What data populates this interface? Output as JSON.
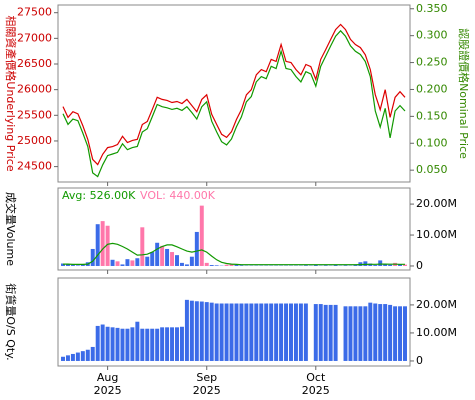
{
  "chart_data": [
    {
      "type": "line",
      "ylabel": "相關資產價格Underlying Price",
      "y2label": "認股證價格Nominal Price",
      "ylim": [
        24200,
        27650
      ],
      "yticks": [
        24500,
        25000,
        25500,
        26000,
        26500,
        27000,
        27500
      ],
      "y2lim": [
        0.028,
        0.357
      ],
      "y2ticks": [
        {
          "value": 0.05,
          "label": "0.050"
        },
        {
          "value": 0.1,
          "label": "0.100"
        },
        {
          "value": 0.15,
          "label": "0.150"
        },
        {
          "value": 0.2,
          "label": "0.200"
        },
        {
          "value": 0.25,
          "label": "0.250"
        },
        {
          "value": 0.3,
          "label": "0.300"
        },
        {
          "value": 0.35,
          "label": "0.350"
        }
      ],
      "ycolor": "#cc0000",
      "y2color": "#338800",
      "series": [
        {
          "color": "#dd0000",
          "values": [
            25670,
            25460,
            25570,
            25530,
            25300,
            25030,
            24640,
            24540,
            24740,
            24870,
            24890,
            24930,
            25090,
            24970,
            25010,
            25030,
            25320,
            25380,
            25610,
            25850,
            25810,
            25790,
            25750,
            25770,
            25730,
            25810,
            25690,
            25570,
            25810,
            25900,
            25520,
            25320,
            25130,
            25070,
            25180,
            25420,
            25610,
            25900,
            26000,
            26290,
            26390,
            26350,
            26590,
            26550,
            26880,
            26550,
            26530,
            26390,
            26290,
            26490,
            26450,
            26200,
            26590,
            26780,
            26980,
            27170,
            27270,
            27170,
            26980,
            26880,
            26820,
            26680,
            26390,
            25900,
            25610,
            26000,
            25460,
            25850,
            25960,
            25850
          ]
        },
        {
          "color": "#119900",
          "axis": "y2",
          "values": [
            0.155,
            0.135,
            0.145,
            0.142,
            0.119,
            0.094,
            0.045,
            0.038,
            0.06,
            0.077,
            0.08,
            0.083,
            0.099,
            0.088,
            0.092,
            0.094,
            0.121,
            0.127,
            0.149,
            0.172,
            0.168,
            0.166,
            0.163,
            0.165,
            0.161,
            0.168,
            0.157,
            0.145,
            0.168,
            0.177,
            0.141,
            0.121,
            0.103,
            0.097,
            0.108,
            0.131,
            0.149,
            0.177,
            0.187,
            0.214,
            0.224,
            0.22,
            0.243,
            0.239,
            0.271,
            0.239,
            0.237,
            0.224,
            0.214,
            0.233,
            0.229,
            0.206,
            0.243,
            0.262,
            0.281,
            0.299,
            0.309,
            0.299,
            0.281,
            0.271,
            0.265,
            0.252,
            0.224,
            0.16,
            0.13,
            0.165,
            0.11,
            0.16,
            0.17,
            0.16
          ]
        }
      ]
    },
    {
      "type": "bar",
      "ylabel": "成交量Volume",
      "ylim": [
        -1300000,
        25200000
      ],
      "yticks": [
        0,
        {
          "value": 10000000,
          "label": "10.00M"
        },
        {
          "value": 20000000,
          "label": "20.00M"
        }
      ],
      "avg_label": "Avg: 526.00K",
      "vol_label": "VOL: 440.00K",
      "series": [
        {
          "color": "#3b6be8",
          "values": [
            800000,
            500000,
            300000,
            200000,
            600000,
            1200000,
            5500000,
            13500000,
            null,
            null,
            2000000,
            null,
            500000,
            2200000,
            null,
            2500000,
            null,
            3000000,
            4500000,
            7500000,
            null,
            5500000,
            null,
            3500000,
            1000000,
            500000,
            3000000,
            11000000,
            null,
            null,
            300000,
            200000,
            100000,
            null,
            null,
            300000,
            200000,
            100000,
            100000,
            100000,
            100000,
            100000,
            100000,
            100000,
            100000,
            100000,
            100000,
            100000,
            100000,
            200000,
            100000,
            300000,
            100000,
            200000,
            100000,
            300000,
            100000,
            200000,
            100000,
            300000,
            1200000,
            1500000,
            800000,
            300000,
            1800000,
            600000,
            400000,
            null,
            500000,
            null
          ]
        },
        {
          "color": "#ff77aa",
          "values": [
            null,
            null,
            null,
            null,
            null,
            null,
            null,
            null,
            14500000,
            13000000,
            null,
            1500000,
            null,
            null,
            1800000,
            null,
            12500000,
            null,
            null,
            null,
            6500000,
            null,
            4500000,
            null,
            null,
            null,
            null,
            null,
            19500000,
            1000000,
            null,
            null,
            null,
            400000,
            500000,
            null,
            null,
            null,
            null,
            null,
            null,
            null,
            null,
            null,
            null,
            null,
            null,
            null,
            null,
            null,
            null,
            null,
            null,
            null,
            null,
            null,
            null,
            null,
            null,
            null,
            null,
            null,
            null,
            null,
            null,
            null,
            null,
            1000000,
            null,
            440000
          ]
        },
        {
          "type": "line",
          "color": "#119900",
          "values": [
            600000,
            600000,
            500000,
            500000,
            500000,
            600000,
            1500000,
            3500000,
            5500000,
            7000000,
            7300000,
            7000000,
            6300000,
            5500000,
            4500000,
            3500000,
            3600000,
            3800000,
            4500000,
            5500000,
            6300000,
            6800000,
            6800000,
            6200000,
            5500000,
            4800000,
            4500000,
            4800000,
            5200000,
            4500000,
            3200000,
            2000000,
            1200000,
            800000,
            600000,
            500000,
            400000,
            400000,
            400000,
            400000,
            400000,
            400000,
            400000,
            400000,
            400000,
            400000,
            400000,
            400000,
            400000,
            400000,
            400000,
            400000,
            400000,
            400000,
            400000,
            400000,
            400000,
            400000,
            400000,
            400000,
            450000,
            500000,
            550000,
            550000,
            600000,
            600000,
            580000,
            560000,
            540000,
            526000
          ]
        }
      ]
    },
    {
      "type": "bar",
      "ylabel": "街貨量O/S Qty.",
      "ylim": [
        -1800000,
        29600000
      ],
      "yticks": [
        0,
        {
          "value": 10000000,
          "label": "10.00M"
        },
        {
          "value": 20000000,
          "label": "20.00M"
        }
      ],
      "xticks": [
        {
          "value": 9,
          "label": "Aug"
        },
        {
          "value": 29,
          "label": "Sep"
        },
        {
          "value": 51,
          "label": "Oct"
        }
      ],
      "xtick_years": [
        "2025",
        "2025",
        "2025"
      ],
      "series": [
        {
          "color": "#3b6be8",
          "values": [
            1500000,
            2000000,
            2500000,
            3000000,
            3500000,
            4000000,
            5000000,
            12500000,
            13000000,
            12200000,
            12000000,
            11800000,
            11500000,
            11500000,
            12000000,
            14000000,
            11500000,
            11500000,
            11500000,
            11500000,
            12000000,
            12000000,
            12000000,
            12000000,
            12200000,
            21800000,
            21500000,
            21300000,
            21200000,
            21000000,
            20800000,
            20500000,
            20500000,
            20500000,
            20500000,
            20500000,
            20500000,
            20500000,
            20500000,
            20500000,
            20500000,
            20500000,
            20500000,
            20500000,
            20500000,
            20500000,
            20500000,
            20500000,
            20500000,
            20500000,
            null,
            20300000,
            20300000,
            20000000,
            20000000,
            20000000,
            null,
            19500000,
            19500000,
            19500000,
            19500000,
            19500000,
            20800000,
            20500000,
            20300000,
            20300000,
            20000000,
            19500000,
            19500000,
            19500000
          ]
        }
      ]
    }
  ]
}
